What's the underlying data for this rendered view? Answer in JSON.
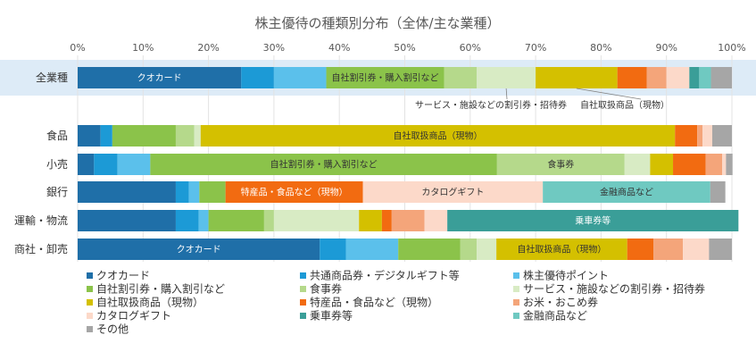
{
  "chart_data": {
    "type": "bar",
    "orientation": "horizontal",
    "stacked": true,
    "percent": true,
    "title": "株主優待の種類別分布（全体/主な業種）",
    "x_ticks": [
      "0%",
      "10%",
      "20%",
      "30%",
      "40%",
      "50%",
      "60%",
      "70%",
      "80%",
      "90%",
      "100%"
    ],
    "xlim": [
      0,
      100
    ],
    "highlight_category": "全業種",
    "categories": [
      "全業種",
      "食品",
      "小売",
      "銀行",
      "運輸・物流",
      "商社・卸売"
    ],
    "series": [
      {
        "name": "クオカード",
        "color": "#1F6FA8",
        "values": [
          25,
          3.5,
          2.5,
          15,
          15,
          37
        ]
      },
      {
        "name": "共通商品券・デジタルギフト等",
        "color": "#1C9AD6",
        "values": [
          5,
          1.8,
          3.6,
          2,
          3.5,
          4
        ]
      },
      {
        "name": "株主優待ポイント",
        "color": "#5BC0EB",
        "values": [
          8,
          0,
          5,
          1.6,
          1.5,
          8
        ]
      },
      {
        "name": "自社割引券・購入割引など",
        "color": "#8BC34A",
        "values": [
          18,
          9.7,
          53,
          4,
          8.5,
          9.5
        ]
      },
      {
        "name": "食事券",
        "color": "#B5D98B",
        "values": [
          5,
          2.8,
          19.5,
          0,
          1.5,
          2.5
        ]
      },
      {
        "name": "サービス・施設などの割引券・招待券",
        "color": "#D8EBC4",
        "values": [
          9,
          1,
          3.9,
          0,
          13,
          3
        ]
      },
      {
        "name": "自社取扱商品（現物）",
        "color": "#D4C000",
        "values": [
          12.5,
          72.5,
          3.5,
          0,
          3.5,
          20
        ]
      },
      {
        "name": "特産品・食品など（現物）",
        "color": "#F26B11",
        "values": [
          4.5,
          3.4,
          5,
          21,
          1.5,
          4
        ]
      },
      {
        "name": "お米・おこめ券",
        "color": "#F4A57A",
        "values": [
          3,
          0.8,
          2.5,
          0,
          5,
          4.5
        ]
      },
      {
        "name": "カタログギフト",
        "color": "#FCD9C9",
        "values": [
          3.5,
          1.5,
          0.6,
          27.5,
          3.5,
          4
        ]
      },
      {
        "name": "乗車券等",
        "color": "#3A9E98",
        "values": [
          1.5,
          0,
          0,
          0,
          44.5,
          0
        ]
      },
      {
        "name": "金融商品など",
        "color": "#6FC9C1",
        "values": [
          1.8,
          0,
          0,
          25.6,
          0,
          0
        ]
      },
      {
        "name": "その他",
        "color": "#A6A6A6",
        "values": [
          3.2,
          3,
          1,
          2.3,
          0,
          3.5
        ]
      }
    ],
    "segment_labels": [
      {
        "category": "全業種",
        "series": "クオカード",
        "text": "クオカード"
      },
      {
        "category": "全業種",
        "series": "自社割引券・購入割引など",
        "text": "自社割引券・購入割引など"
      },
      {
        "category": "食品",
        "series": "自社取扱商品（現物）",
        "text": "自社取扱商品（現物）"
      },
      {
        "category": "小売",
        "series": "自社割引券・購入割引など",
        "text": "自社割引券・購入割引など"
      },
      {
        "category": "小売",
        "series": "食事券",
        "text": "食事券"
      },
      {
        "category": "銀行",
        "series": "特産品・食品など（現物）",
        "text": "特産品・食品など（現物）"
      },
      {
        "category": "銀行",
        "series": "カタログギフト",
        "text": "カタログギフト"
      },
      {
        "category": "銀行",
        "series": "金融商品など",
        "text": "金融商品など"
      },
      {
        "category": "運輸・物流",
        "series": "乗車券等",
        "text": "乗車券等"
      },
      {
        "category": "商社・卸売",
        "series": "クオカード",
        "text": "クオカード"
      },
      {
        "category": "商社・卸売",
        "series": "自社取扱商品（現物）",
        "text": "自社取扱商品（現物）"
      }
    ],
    "callouts": [
      {
        "category": "全業種",
        "series": "サービス・施設などの割引券・招待券",
        "text": "サービス・施設などの割引券・招待券"
      },
      {
        "category": "全業種",
        "series": "自社取扱商品（現物）",
        "text": "自社取扱商品（現物）"
      }
    ],
    "legend": {
      "placement": "bottom",
      "columns": 3
    }
  }
}
